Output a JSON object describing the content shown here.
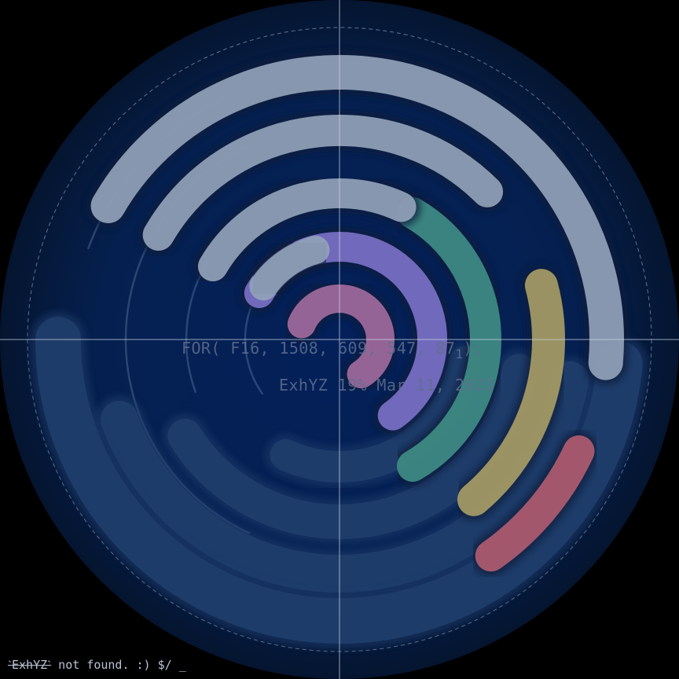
{
  "formula": {
    "prefix": "FOR( F16, 1508, 609, 547, 87",
    "subscript": "1",
    "suffix": ");"
  },
  "datestamp": "ExhYZ 19% Mar 11, 2022",
  "terminal": {
    "struck": "ˋExhYZˋ",
    "message": " not found. :) $/ _"
  },
  "colors": {
    "background": "#000000",
    "disc": "#061a3a",
    "track": "#203e6c",
    "crosshair": "#c9d2e2",
    "pink": "#a26a9e",
    "purple": "#7b70c6",
    "teal": "#3f8c86",
    "olive": "#a79c66",
    "red": "#b05b70",
    "light": "#93a2ba"
  },
  "arcs": [
    {
      "name": "pink-ring-arc",
      "color": "pink",
      "start": 292,
      "end": 148
    },
    {
      "name": "purple-ring-arc",
      "color": "purple",
      "start": 300,
      "end": 145
    },
    {
      "name": "teal-ring-arc",
      "color": "teal",
      "start": 30,
      "end": 150
    },
    {
      "name": "olive-ring-arc",
      "color": "olive",
      "start": 75,
      "end": 140
    },
    {
      "name": "red-ring-arc",
      "color": "red",
      "start": 115,
      "end": 145
    },
    {
      "name": "light-ring-arc-1",
      "color": "light",
      "start": 305,
      "end": 345
    },
    {
      "name": "light-ring-arc-2",
      "color": "light",
      "start": 300,
      "end": 25
    },
    {
      "name": "light-ring-arc-3",
      "color": "light",
      "start": 300,
      "end": 45
    },
    {
      "name": "light-ring-arc-4",
      "color": "light",
      "start": 300,
      "end": 95
    }
  ]
}
